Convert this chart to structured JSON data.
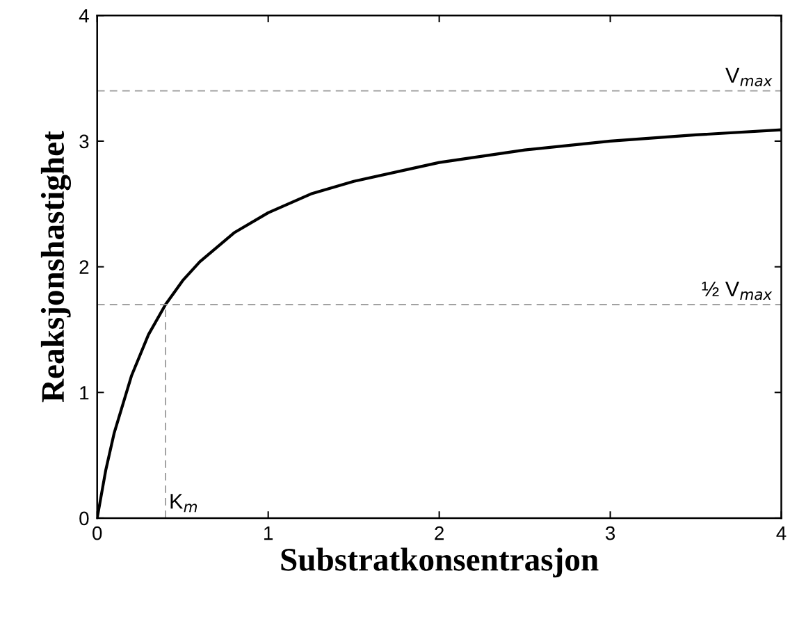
{
  "chart_data": {
    "type": "line",
    "xlabel": "Substratkonsentrasjon",
    "ylabel": "Reaksjonshastighet",
    "xlim": [
      0,
      4
    ],
    "ylim": [
      0,
      4
    ],
    "xticks": [
      0,
      1,
      2,
      3,
      4
    ],
    "yticks": [
      0,
      1,
      2,
      3,
      4
    ],
    "grid": false,
    "legend": false,
    "marker": "none",
    "series": [
      {
        "color": "#000000",
        "line_style": "solid",
        "x": [
          0,
          0.05,
          0.1,
          0.2,
          0.3,
          0.4,
          0.5,
          0.6,
          0.8,
          1,
          1.25,
          1.5,
          2,
          2.5,
          3,
          3.5,
          4
        ],
        "values": [
          0,
          0.38,
          0.68,
          1.13,
          1.46,
          1.7,
          1.89,
          2.04,
          2.27,
          2.43,
          2.58,
          2.68,
          2.83,
          2.93,
          3.0,
          3.05,
          3.09
        ]
      },
      {
        "color": "#999999",
        "line_style": "dashed",
        "x": [
          0.4,
          0.4
        ],
        "values": [
          0,
          1.7
        ]
      }
    ],
    "ref_lines": [
      {
        "axis": "y",
        "value": 3.4,
        "label": "V$_{max}$",
        "color": "#999999",
        "line_style": "dashed"
      },
      {
        "axis": "y",
        "value": 1.7,
        "label": "½ V$_{max}$",
        "color": "#999999",
        "line_style": "dashed"
      }
    ],
    "annotations": [
      {
        "text": "K$_{m}$",
        "x": 0.4,
        "y": 0
      }
    ]
  }
}
